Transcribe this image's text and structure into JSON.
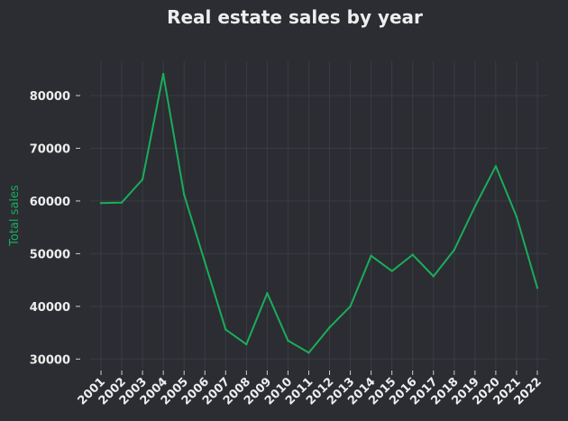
{
  "colors": {
    "background": "#2b2d33",
    "text": "#eeeeee",
    "series": "#1aad5a",
    "grid": "#3a3c43"
  },
  "chart_data": {
    "type": "line",
    "title": "Real estate sales by year",
    "xlabel": "",
    "ylabel": "Total sales",
    "grid": true,
    "legend": "none",
    "x": [
      "2001",
      "2002",
      "2003",
      "2004",
      "2005",
      "2006",
      "2007",
      "2008",
      "2009",
      "2010",
      "2011",
      "2012",
      "2013",
      "2014",
      "2015",
      "2016",
      "2017",
      "2018",
      "2019",
      "2020",
      "2021",
      "2022"
    ],
    "series": [
      {
        "values": [
          59600,
          59700,
          64100,
          84100,
          61200,
          48400,
          35600,
          32800,
          42500,
          33500,
          31200,
          36000,
          40000,
          49600,
          46700,
          49800,
          45700,
          50700,
          59000,
          66600,
          57000,
          43500
        ]
      }
    ],
    "yticks": [
      30000,
      40000,
      50000,
      60000,
      70000,
      80000
    ],
    "ylim": [
      28000,
      86500
    ]
  }
}
